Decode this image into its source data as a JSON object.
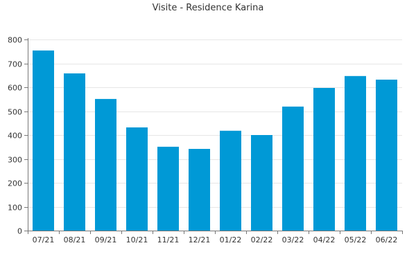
{
  "chart_data": {
    "type": "bar",
    "title": "Visite - Residence Karina",
    "xlabel": "",
    "ylabel": "",
    "categories": [
      "07/21",
      "08/21",
      "09/21",
      "10/21",
      "11/21",
      "12/21",
      "01/22",
      "02/22",
      "03/22",
      "04/22",
      "05/22",
      "06/22"
    ],
    "values": [
      754,
      658,
      551,
      432,
      351,
      342,
      418,
      400,
      519,
      597,
      647,
      632
    ],
    "ylim": [
      0,
      800
    ],
    "yticks": [
      0,
      100,
      200,
      300,
      400,
      500,
      600,
      700,
      800
    ],
    "grid": true,
    "legend": "none",
    "bar_color": "#0099d6"
  }
}
